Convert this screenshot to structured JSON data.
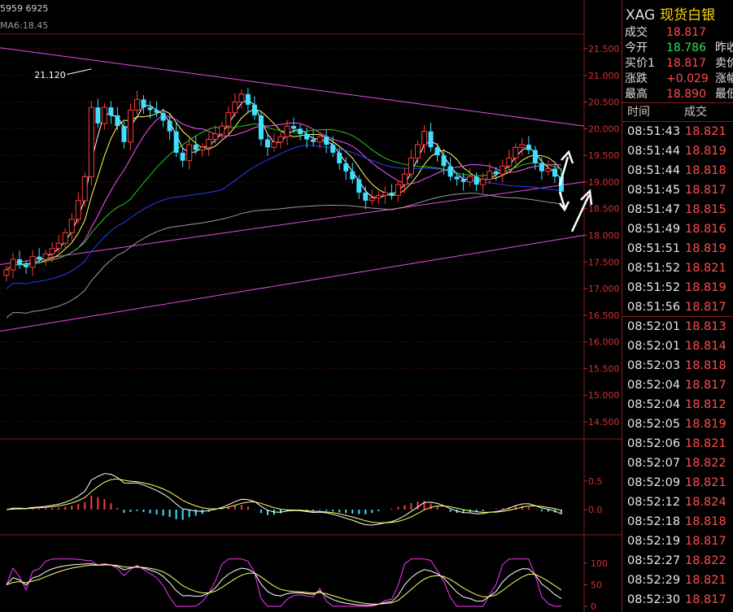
{
  "header": {
    "top_text": "5959 6925",
    "ma_text": "MA6:18.45"
  },
  "side_panel": {
    "symbol": "XAG",
    "name": "现货白银",
    "quote_rows": [
      {
        "label": "成交",
        "value": "18.817",
        "color": "red",
        "label2": ""
      },
      {
        "label": "今开",
        "value": "18.786",
        "color": "green",
        "label2": "昨收"
      },
      {
        "label": "买价1",
        "value": "18.817",
        "color": "red",
        "label2": "卖价"
      },
      {
        "label": "涨跌",
        "value": "+0.029",
        "color": "red",
        "label2": "涨幅"
      },
      {
        "label": "最高",
        "value": "18.890",
        "color": "red",
        "label2": "最低"
      }
    ],
    "tick_header": {
      "time": "时间",
      "price": "成交"
    },
    "ticks": [
      {
        "time": "08:51:43",
        "price": "18.821"
      },
      {
        "time": "08:51:44",
        "price": "18.819"
      },
      {
        "time": "08:51:44",
        "price": "18.818"
      },
      {
        "time": "08:51:45",
        "price": "18.817"
      },
      {
        "time": "08:51:47",
        "price": "18.815"
      },
      {
        "time": "08:51:49",
        "price": "18.816"
      },
      {
        "time": "08:51:51",
        "price": "18.819"
      },
      {
        "time": "08:51:52",
        "price": "18.821"
      },
      {
        "time": "08:51:52",
        "price": "18.819"
      },
      {
        "time": "08:51:56",
        "price": "18.817"
      },
      {
        "time": "08:52:01",
        "price": "18.813"
      },
      {
        "time": "08:52:01",
        "price": "18.814"
      },
      {
        "time": "08:52:03",
        "price": "18.818"
      },
      {
        "time": "08:52:04",
        "price": "18.817"
      },
      {
        "time": "08:52:04",
        "price": "18.812"
      },
      {
        "time": "08:52:05",
        "price": "18.819"
      },
      {
        "time": "08:52:06",
        "price": "18.821"
      },
      {
        "time": "08:52:07",
        "price": "18.822"
      },
      {
        "time": "08:52:09",
        "price": "18.821"
      },
      {
        "time": "08:52:12",
        "price": "18.824"
      },
      {
        "time": "08:52:18",
        "price": "18.818"
      },
      {
        "time": "08:52:19",
        "price": "18.817"
      },
      {
        "time": "08:52:27",
        "price": "18.822"
      },
      {
        "time": "08:52:29",
        "price": "18.821"
      },
      {
        "time": "08:52:30",
        "price": "18.817"
      }
    ]
  },
  "main_chart": {
    "y_ticks": [
      "21.500",
      "21.000",
      "20.500",
      "20.000",
      "19.500",
      "19.000",
      "18.500",
      "18.000",
      "17.500",
      "17.000",
      "16.500",
      "16.000",
      "15.500",
      "15.000",
      "14.500"
    ],
    "high_label": "21.120",
    "colors": {
      "up": "#ff3b3b",
      "down": "#3fe0ff",
      "ma_fast": "#ffffff",
      "ma_2": "#ffff66",
      "ma_3": "#ff55ff",
      "ma_4": "#22cc22",
      "ma_5": "#2a3dff",
      "ma_6": "#9a9a9a",
      "trend": "#e64ee6",
      "grid": "#7a1313"
    }
  },
  "macd_panel": {
    "y_ticks": [
      "0.5",
      "0.0"
    ]
  },
  "kdj_panel": {
    "y_ticks": [
      "100",
      "50",
      "0"
    ]
  },
  "chart_data": {
    "type": "candlestick",
    "ylim": [
      14.3,
      21.7
    ],
    "closes": [
      17.35,
      17.55,
      17.45,
      17.4,
      17.6,
      17.55,
      17.65,
      17.75,
      17.85,
      18.05,
      18.3,
      18.65,
      19.1,
      20.4,
      20.1,
      20.4,
      20.25,
      20.05,
      19.75,
      20.35,
      20.55,
      20.4,
      20.35,
      20.3,
      20.15,
      19.95,
      19.55,
      19.4,
      19.7,
      19.6,
      19.65,
      19.8,
      19.9,
      20.05,
      20.3,
      20.5,
      20.65,
      20.45,
      20.25,
      19.8,
      19.65,
      19.75,
      19.85,
      20.05,
      20.0,
      19.9,
      19.8,
      19.75,
      19.85,
      19.7,
      19.55,
      19.35,
      19.2,
      19.05,
      18.8,
      18.65,
      18.7,
      18.75,
      18.8,
      18.75,
      18.95,
      19.15,
      19.45,
      19.7,
      19.95,
      19.65,
      19.5,
      19.3,
      19.1,
      19.05,
      19.0,
      19.1,
      18.95,
      19.05,
      19.2,
      19.15,
      19.3,
      19.45,
      19.65,
      19.7,
      19.6,
      19.35,
      19.2,
      19.25,
      19.1,
      18.82
    ]
  }
}
